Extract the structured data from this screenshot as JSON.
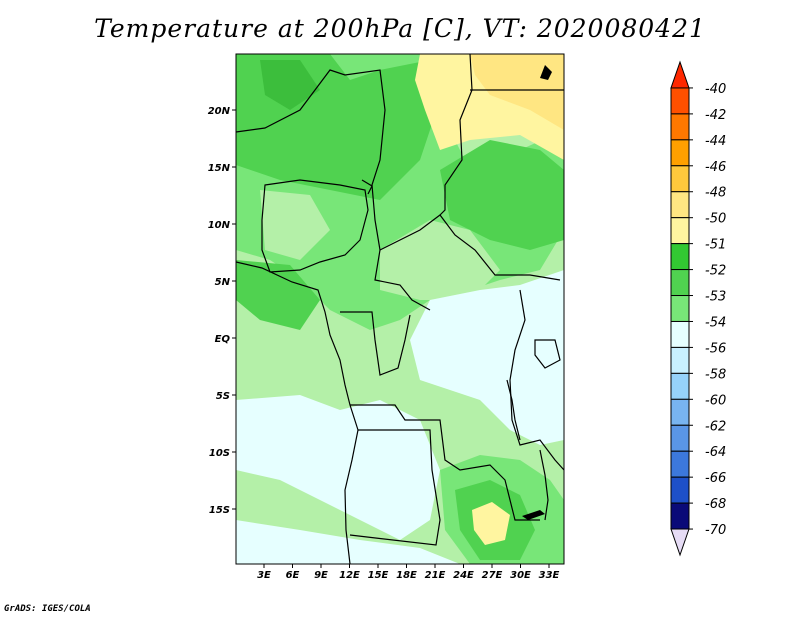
{
  "title": "Temperature at 200hPa [C], VT: 2020080421",
  "credit": "GrADS: IGES/COLA",
  "map": {
    "lat_labels": [
      "20N",
      "15N",
      "10N",
      "5N",
      "EQ",
      "5S",
      "10S",
      "15S"
    ],
    "lon_labels": [
      "3E",
      "6E",
      "9E",
      "12E",
      "15E",
      "18E",
      "21E",
      "24E",
      "27E",
      "30E",
      "33E"
    ],
    "colors": {
      "light_green": "#b4f0a8",
      "mid_green": "#78e678",
      "green": "#50d250",
      "dark_green": "#3cbe3c",
      "pale_cyan": "#e6ffff",
      "pale_yellow": "#fff5a0",
      "yellow": "#ffe682"
    }
  },
  "colorbar": {
    "labels": [
      "-40",
      "-42",
      "-44",
      "-46",
      "-48",
      "-50",
      "-51",
      "-52",
      "-53",
      "-54",
      "-56",
      "-58",
      "-60",
      "-62",
      "-64",
      "-66",
      "-68",
      "-70"
    ],
    "colors": [
      "#ff2800",
      "#ff5000",
      "#ff7800",
      "#ffa000",
      "#ffc83c",
      "#ffe682",
      "#fff5a0",
      "#32c832",
      "#50d250",
      "#78e678",
      "#e6ffff",
      "#c8f0ff",
      "#96d2fa",
      "#78b4f0",
      "#5a96e6",
      "#3c78dc",
      "#1e50c8",
      "#0a0a78",
      "#e6dcf5"
    ]
  }
}
